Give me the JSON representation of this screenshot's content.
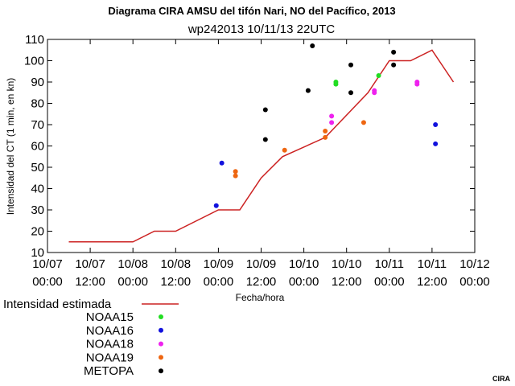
{
  "chart_data": {
    "type": "line",
    "title": "Diagrama CIRA AMSU del tifón Nari, NO del Pacífico, 2013",
    "subtitle": "wp242013 10/11/13 22UTC",
    "xlabel": "Fecha/hora",
    "ylabel": "Intensidad del CT (1 min, en kn)",
    "ylim": [
      10,
      110
    ],
    "yticks": [
      10,
      20,
      30,
      40,
      50,
      60,
      70,
      80,
      90,
      100,
      110
    ],
    "xlim": [
      0,
      10
    ],
    "xticks": [
      {
        "x": 0,
        "line1": "10/07",
        "line2": "00:00"
      },
      {
        "x": 1,
        "line1": "10/07",
        "line2": "12:00"
      },
      {
        "x": 2,
        "line1": "10/08",
        "line2": "00:00"
      },
      {
        "x": 3,
        "line1": "10/08",
        "line2": "12:00"
      },
      {
        "x": 4,
        "line1": "10/09",
        "line2": "00:00"
      },
      {
        "x": 5,
        "line1": "10/09",
        "line2": "12:00"
      },
      {
        "x": 6,
        "line1": "10/10",
        "line2": "00:00"
      },
      {
        "x": 7,
        "line1": "10/10",
        "line2": "12:00"
      },
      {
        "x": 8,
        "line1": "10/11",
        "line2": "00:00"
      },
      {
        "x": 9,
        "line1": "10/11",
        "line2": "12:00"
      },
      {
        "x": 10,
        "line1": "10/12",
        "line2": "00:00"
      }
    ],
    "line_series": {
      "name": "Intensidad estimada",
      "color": "#cc2222",
      "points": [
        [
          0.5,
          15
        ],
        [
          2.0,
          15
        ],
        [
          2.5,
          20
        ],
        [
          3.0,
          20
        ],
        [
          4.0,
          30
        ],
        [
          4.5,
          30
        ],
        [
          5.0,
          45
        ],
        [
          5.5,
          55
        ],
        [
          6.5,
          64
        ],
        [
          7.5,
          85
        ],
        [
          8.0,
          100
        ],
        [
          8.5,
          100
        ],
        [
          9.0,
          105
        ],
        [
          9.5,
          90
        ]
      ]
    },
    "scatter_series": [
      {
        "name": "NOAA15",
        "color": "#22dd22",
        "points": [
          [
            6.75,
            90
          ],
          [
            6.75,
            89
          ],
          [
            7.75,
            93
          ]
        ]
      },
      {
        "name": "NOAA16",
        "color": "#1111dd",
        "points": [
          [
            3.95,
            32
          ],
          [
            4.08,
            52
          ],
          [
            9.08,
            70
          ],
          [
            9.08,
            61
          ]
        ]
      },
      {
        "name": "NOAA18",
        "color": "#ee22ee",
        "points": [
          [
            6.65,
            74
          ],
          [
            6.65,
            71
          ],
          [
            7.65,
            86
          ],
          [
            7.65,
            85
          ],
          [
            8.65,
            90
          ],
          [
            8.65,
            89
          ]
        ]
      },
      {
        "name": "NOAA19",
        "color": "#ee6611",
        "points": [
          [
            4.4,
            48
          ],
          [
            4.4,
            46
          ],
          [
            5.55,
            58
          ],
          [
            6.5,
            67
          ],
          [
            6.5,
            64
          ],
          [
            7.4,
            71
          ]
        ]
      },
      {
        "name": "METOPA",
        "color": "#000000",
        "points": [
          [
            5.1,
            77
          ],
          [
            5.1,
            63
          ],
          [
            6.1,
            86
          ],
          [
            6.2,
            107
          ],
          [
            7.1,
            98
          ],
          [
            7.1,
            85
          ],
          [
            8.1,
            104
          ],
          [
            8.1,
            98
          ]
        ]
      }
    ],
    "legend_position": "below-left",
    "grid": false
  },
  "credit": "CIRA"
}
